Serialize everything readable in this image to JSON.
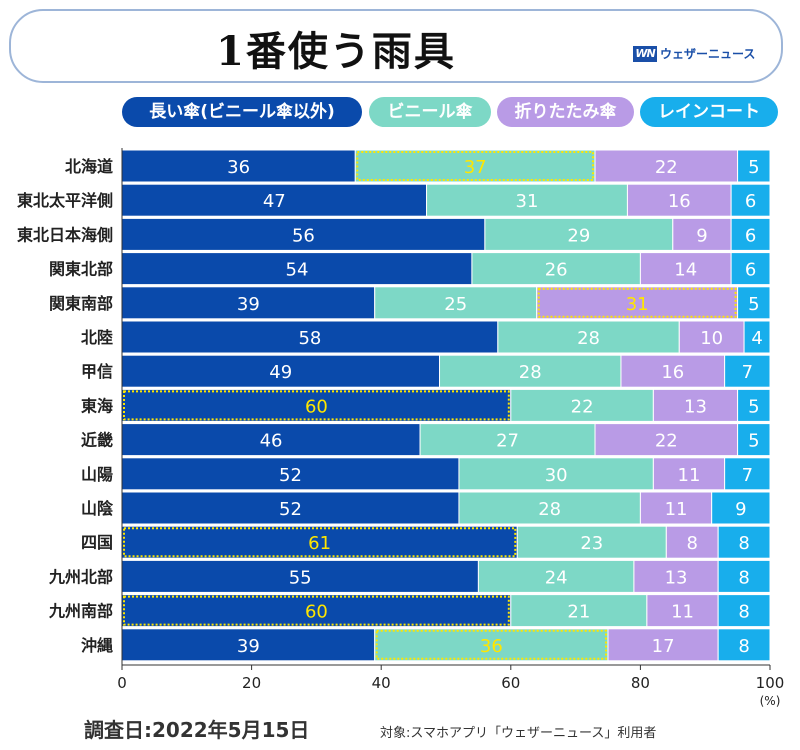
{
  "header": {
    "title": "1番使う雨具",
    "logo_mark": "WN",
    "logo_text": "ウェザーニュース"
  },
  "legend": [
    {
      "label": "長い傘(ビニール傘以外)",
      "color": "#0a4aab"
    },
    {
      "label": "ビニール傘",
      "color": "#7dd8c6"
    },
    {
      "label": "折りたたみ傘",
      "color": "#b99be6"
    },
    {
      "label": "レインコート",
      "color": "#18aeec"
    }
  ],
  "chart_data": {
    "type": "bar",
    "orientation": "horizontal",
    "stacked": true,
    "categories": [
      "北海道",
      "東北太平洋側",
      "東北日本海側",
      "関東北部",
      "関東南部",
      "北陸",
      "甲信",
      "東海",
      "近畿",
      "山陽",
      "山陰",
      "四国",
      "九州北部",
      "九州南部",
      "沖縄"
    ],
    "series": [
      {
        "name": "長い傘(ビニール傘以外)",
        "color": "#0a4aab",
        "values": [
          36,
          47,
          56,
          54,
          39,
          58,
          49,
          60,
          46,
          52,
          52,
          61,
          55,
          60,
          39
        ]
      },
      {
        "name": "ビニール傘",
        "color": "#7dd8c6",
        "values": [
          37,
          31,
          29,
          26,
          25,
          28,
          28,
          22,
          27,
          30,
          28,
          23,
          24,
          21,
          36
        ]
      },
      {
        "name": "折りたたみ傘",
        "color": "#b99be6",
        "values": [
          22,
          16,
          9,
          14,
          31,
          10,
          16,
          13,
          22,
          11,
          11,
          8,
          13,
          11,
          17
        ]
      },
      {
        "name": "レインコート",
        "color": "#18aeec",
        "values": [
          5,
          6,
          6,
          6,
          5,
          4,
          7,
          5,
          5,
          7,
          9,
          8,
          8,
          8,
          8
        ]
      }
    ],
    "highlights": [
      {
        "category": "北海道",
        "series": "ビニール傘"
      },
      {
        "category": "関東南部",
        "series": "折りたたみ傘"
      },
      {
        "category": "東海",
        "series": "長い傘(ビニール傘以外)"
      },
      {
        "category": "四国",
        "series": "長い傘(ビニール傘以外)"
      },
      {
        "category": "九州南部",
        "series": "長い傘(ビニール傘以外)"
      },
      {
        "category": "沖縄",
        "series": "ビニール傘"
      }
    ],
    "xlim": [
      0,
      100
    ],
    "xticks": [
      0,
      20,
      40,
      60,
      80,
      100
    ],
    "xunit": "(%)",
    "highlight_color": "#ffe600"
  },
  "footer": {
    "date": "調査日:2022年5月15日",
    "note": "対象:スマホアプリ「ウェザーニュース」利用者"
  }
}
